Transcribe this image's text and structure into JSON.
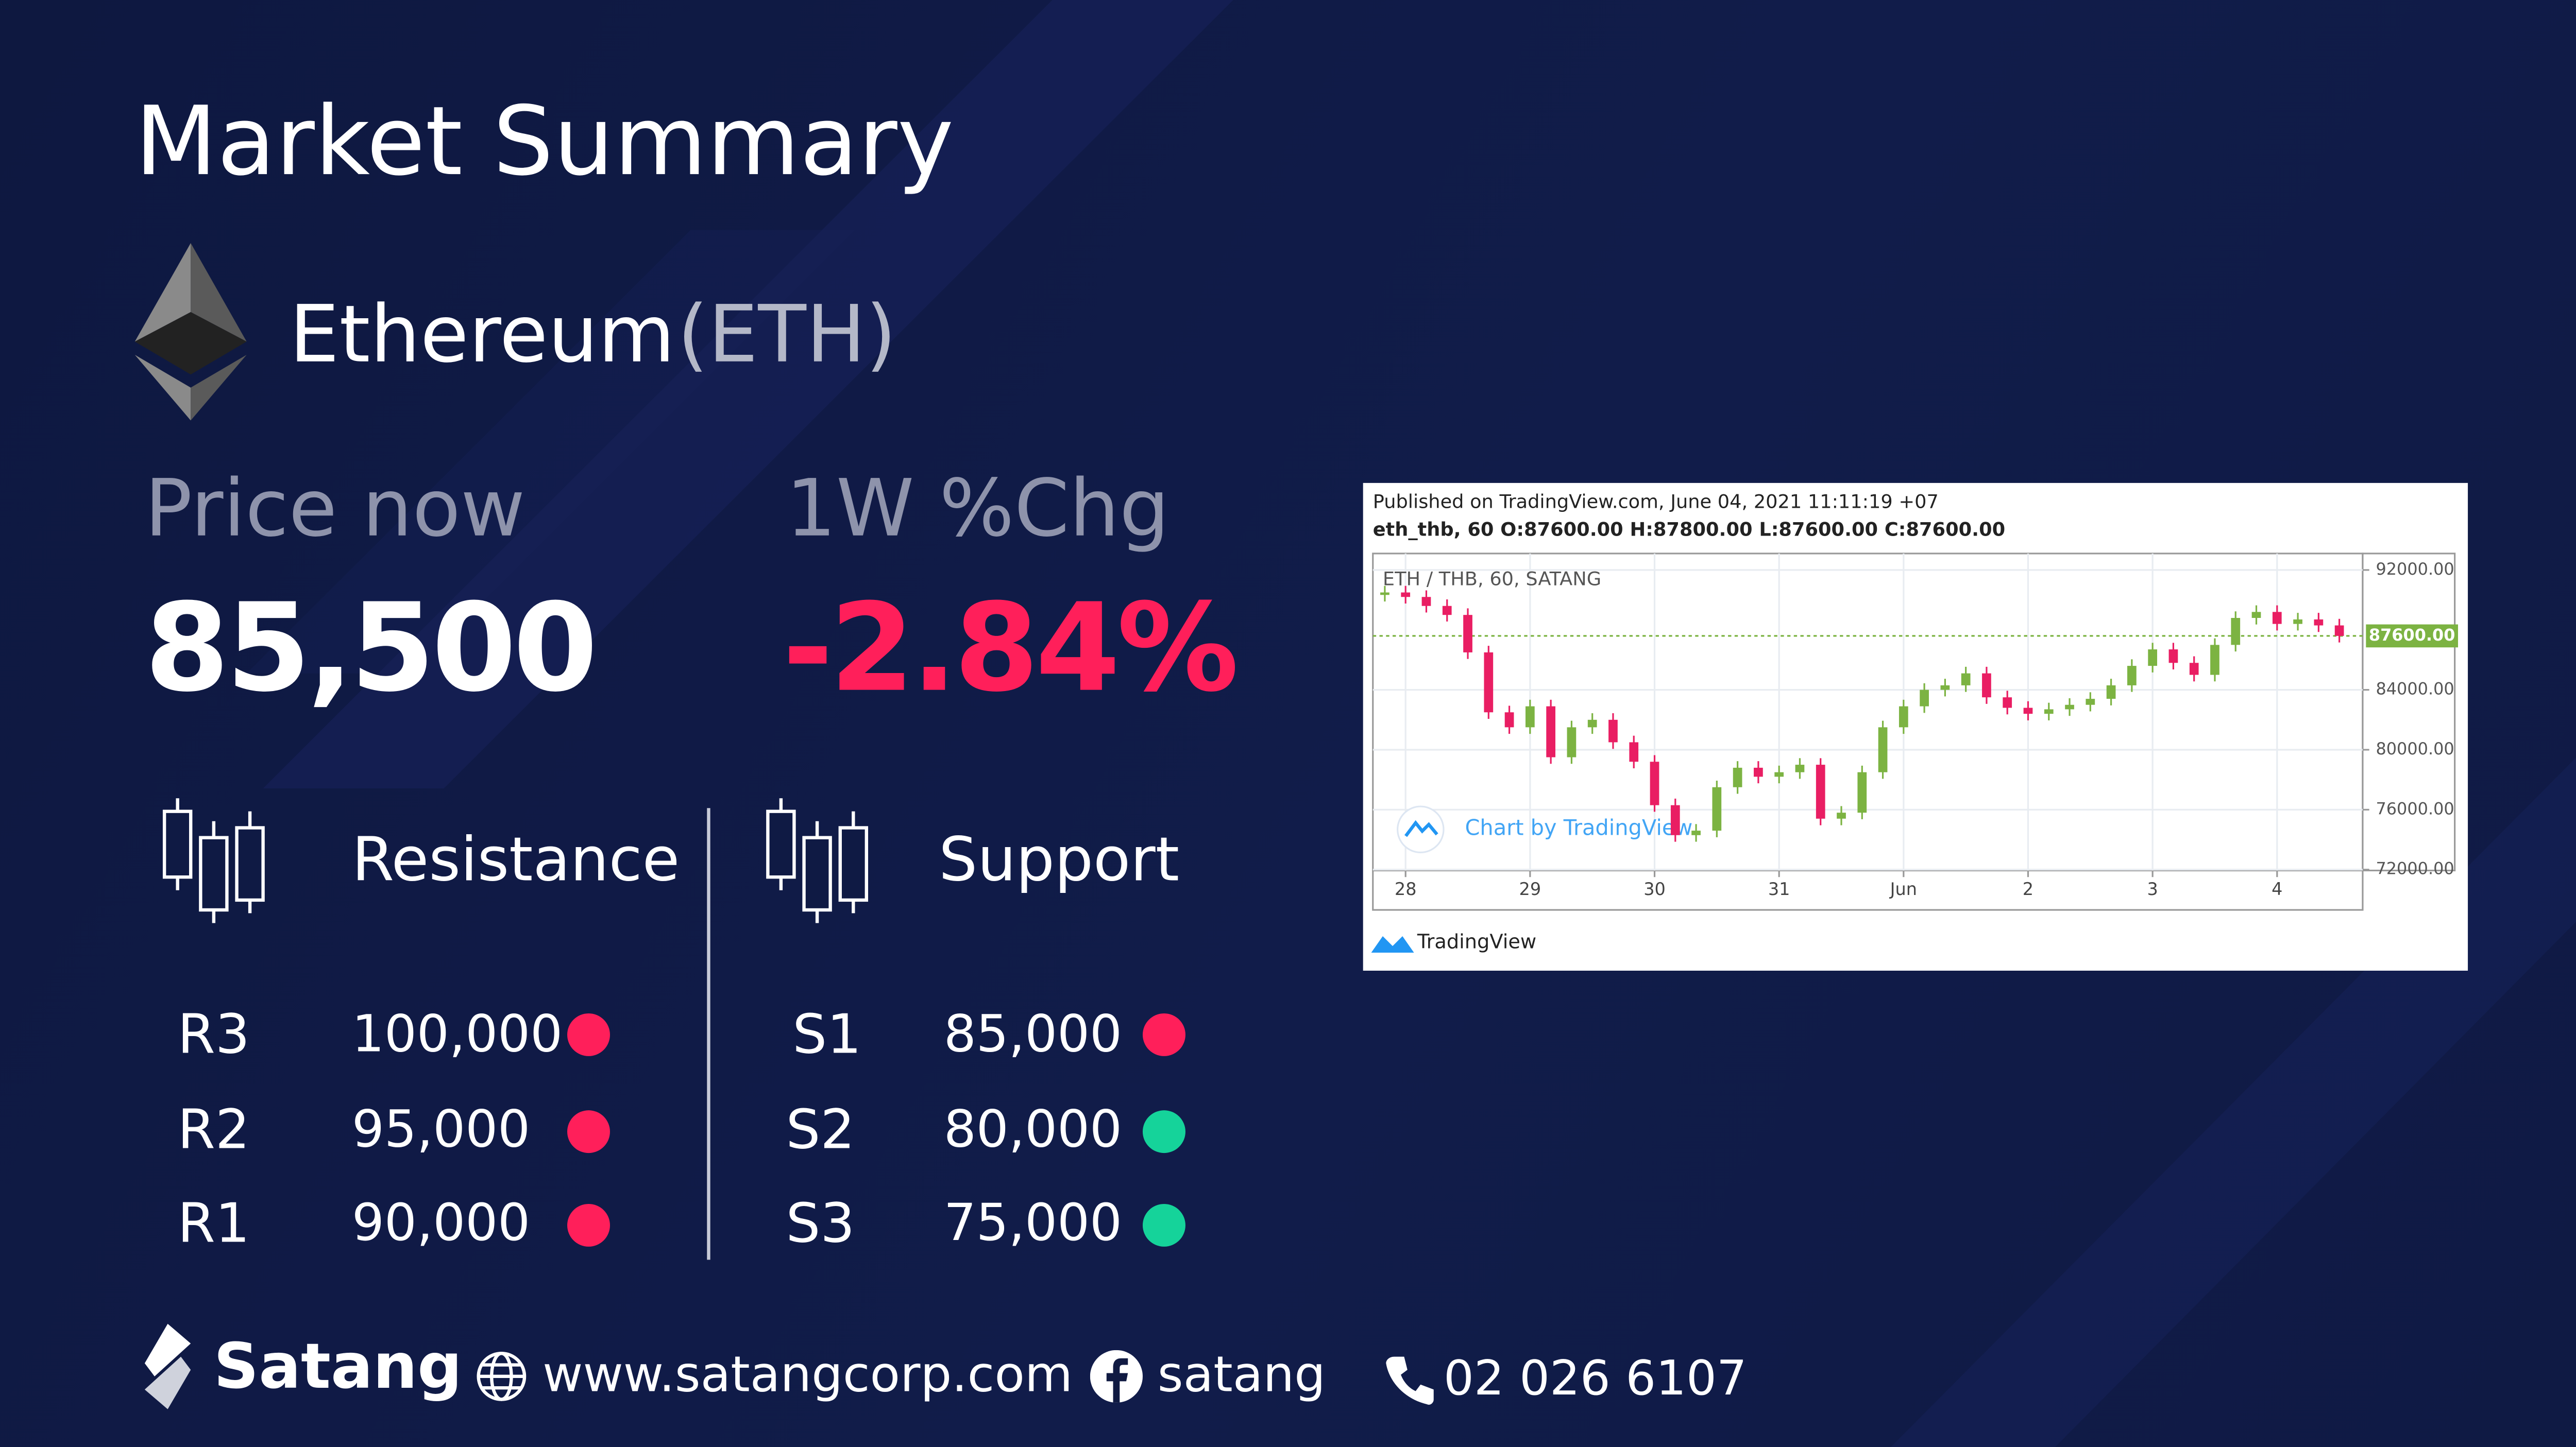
{
  "header": {
    "title": "Market Summary"
  },
  "coin": {
    "name": "Ethereum",
    "symbol": "(ETH)"
  },
  "stats": {
    "price_label": "Price now",
    "price": "85,500",
    "change_label": "1W %Chg",
    "change": "-2.84%"
  },
  "resistance": {
    "title": "Resistance",
    "levels": [
      {
        "label": "R3",
        "value": "100,000",
        "color": "#ff1f5a"
      },
      {
        "label": "R2",
        "value": "95,000",
        "color": "#ff1f5a"
      },
      {
        "label": "R1",
        "value": "90,000",
        "color": "#ff1f5a"
      }
    ]
  },
  "support": {
    "title": "Support",
    "levels": [
      {
        "label": "S1",
        "value": "85,000",
        "color": "#ff1f5a"
      },
      {
        "label": "S2",
        "value": "80,000",
        "color": "#15d39a"
      },
      {
        "label": "S3",
        "value": "75,000",
        "color": "#15d39a"
      }
    ]
  },
  "footer": {
    "brand": "Satang",
    "website": "www.satangcorp.com",
    "facebook": "satang",
    "phone": "02 026 6107"
  },
  "chart_data": {
    "type": "candlestick",
    "published": "Published on TradingView.com, June 04, 2021 11:11:19 +07",
    "ohlc": "eth_thb, 60 O:87600.00 H:87800.00 L:87600.00 C:87600.00",
    "title": "ETH / THB, 60, SATANG",
    "watermark": "Chart by TradingView",
    "brand": "TradingView",
    "x": [
      -4,
      0,
      4,
      8,
      12,
      16,
      20,
      24,
      28,
      32,
      36,
      40,
      44,
      48,
      52,
      56,
      60,
      64,
      68,
      72,
      76,
      80,
      84,
      88,
      92,
      96,
      100,
      104,
      108,
      112,
      116,
      120,
      124,
      128,
      132,
      136,
      140,
      144,
      148,
      152,
      156,
      160,
      164,
      168,
      172,
      176,
      180
    ],
    "values": [
      90500,
      90200,
      89600,
      89000,
      86500,
      82500,
      81500,
      82900,
      79500,
      81500,
      82000,
      80500,
      79200,
      76300,
      74300,
      74600,
      77500,
      78800,
      78200,
      78500,
      79000,
      75400,
      75800,
      78500,
      81500,
      82900,
      84000,
      84300,
      85100,
      83500,
      82800,
      82400,
      82700,
      83000,
      83400,
      84300,
      85600,
      86700,
      85800,
      85000,
      87000,
      88800,
      89200,
      88400,
      88700,
      88300,
      87600
    ],
    "up_color": "#7cb342",
    "down_color": "#e91e63",
    "last_price": {
      "value": 87600,
      "label": "87600.00"
    },
    "xlim": [
      -6.3,
      184.5
    ],
    "xticks": [
      {
        "value": 0,
        "label": "28"
      },
      {
        "value": 24,
        "label": "29"
      },
      {
        "value": 48,
        "label": "30"
      },
      {
        "value": 72,
        "label": "31"
      },
      {
        "value": 96,
        "label": "Jun"
      },
      {
        "value": 120,
        "label": "2"
      },
      {
        "value": 144,
        "label": "3"
      },
      {
        "value": 168,
        "label": "4"
      }
    ],
    "ylim": [
      71940,
      93100
    ],
    "yticks": [
      {
        "value": 72000,
        "label": "72000.00"
      },
      {
        "value": 76000,
        "label": "76000.00"
      },
      {
        "value": 80000,
        "label": "80000.00"
      },
      {
        "value": 84000,
        "label": "84000.00"
      },
      {
        "value": 92000,
        "label": "92000.00"
      }
    ],
    "grid": true
  }
}
